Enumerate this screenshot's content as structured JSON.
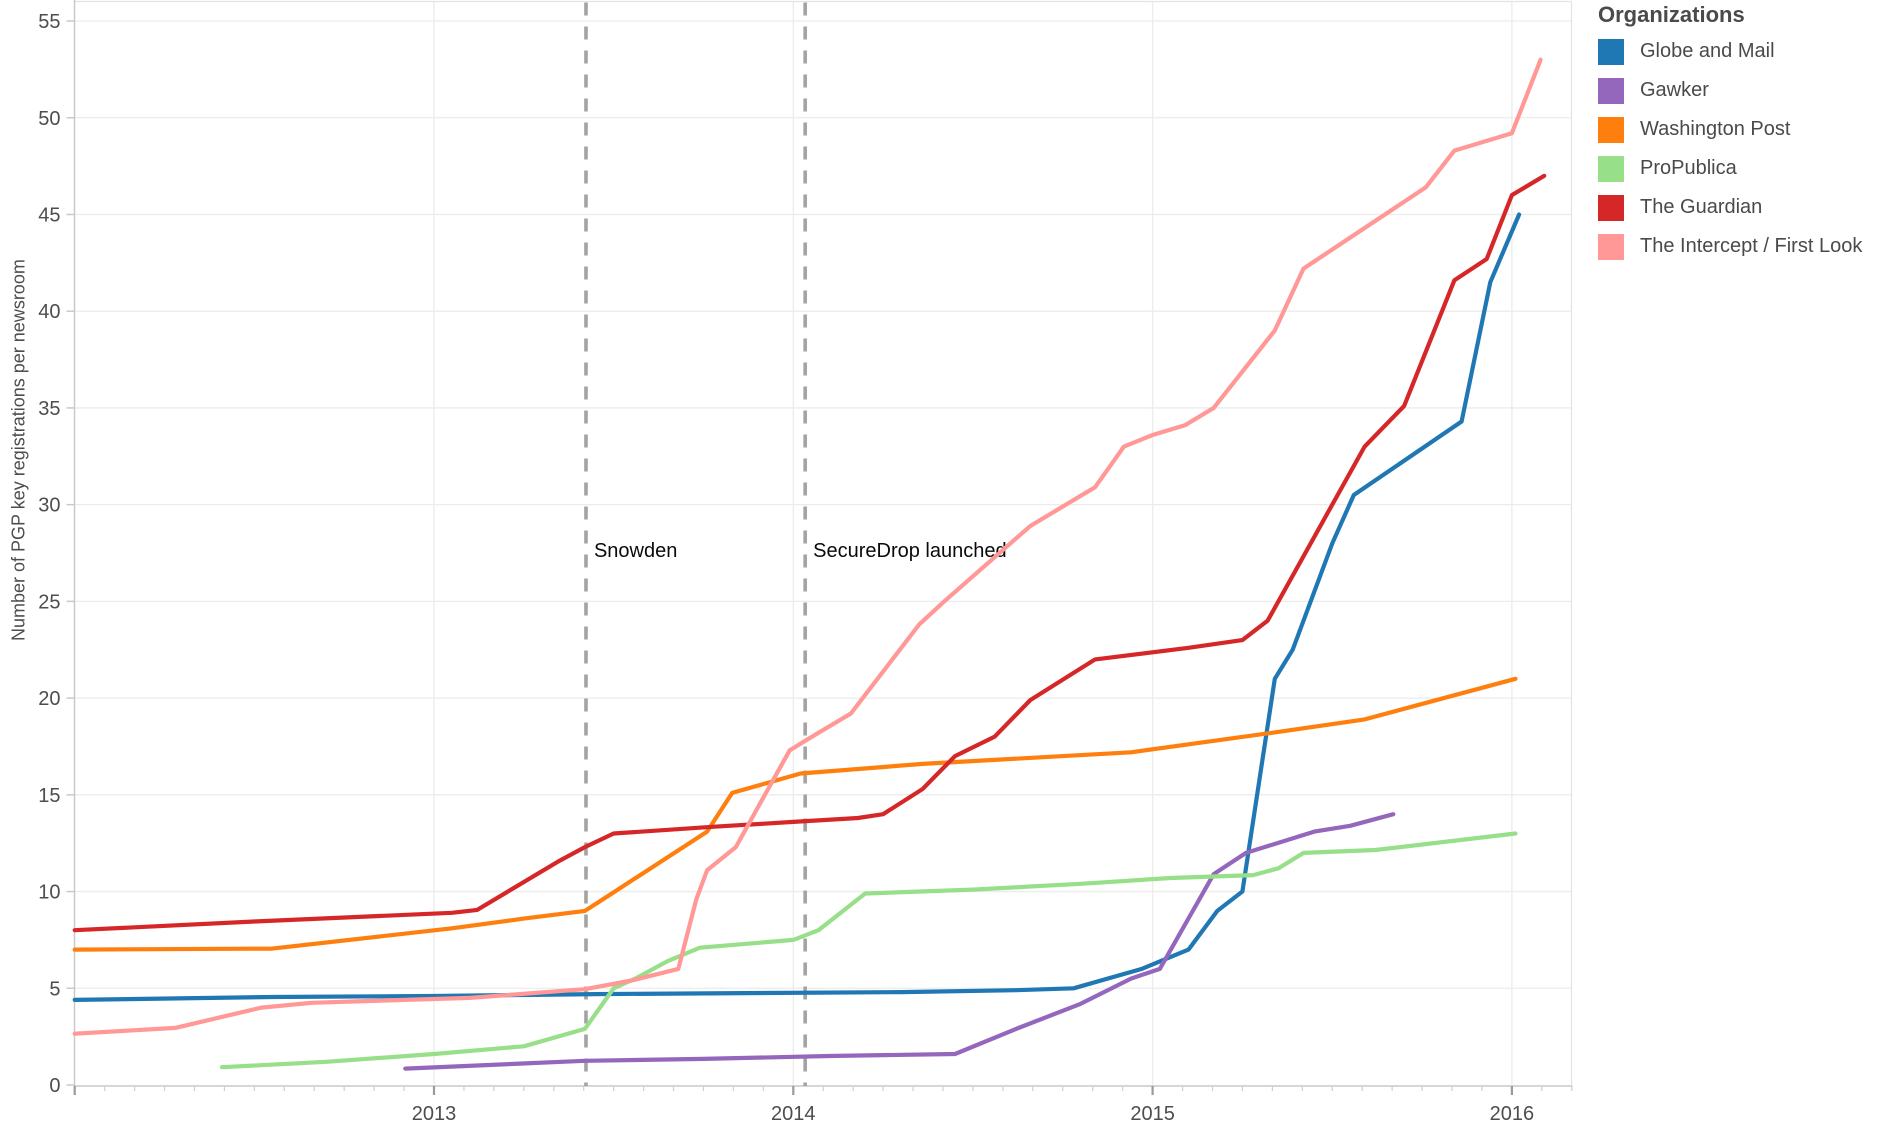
{
  "y_axis_title": "Number of PGP key registrations per newsroom",
  "legend": {
    "title": "Organizations"
  },
  "chart_data": {
    "type": "line",
    "title": "",
    "xlabel": "",
    "ylabel": "Number of PGP key registrations per newsroom",
    "x_range": [
      2012.0,
      2016.17
    ],
    "y_range": [
      0,
      56.2
    ],
    "grid": true,
    "legend_position": "top-right",
    "x_ticks": [
      {
        "value": 2013,
        "label": "2013"
      },
      {
        "value": 2014,
        "label": "2014"
      },
      {
        "value": 2015,
        "label": "2015"
      },
      {
        "value": 2016,
        "label": "2016"
      }
    ],
    "y_ticks": [
      {
        "value": 0,
        "label": "0"
      },
      {
        "value": 5,
        "label": "5"
      },
      {
        "value": 10,
        "label": "10"
      },
      {
        "value": 15,
        "label": "15"
      },
      {
        "value": 20,
        "label": "20"
      },
      {
        "value": 25,
        "label": "25"
      },
      {
        "value": 30,
        "label": "30"
      },
      {
        "value": 35,
        "label": "35"
      },
      {
        "value": 40,
        "label": "40"
      },
      {
        "value": 45,
        "label": "45"
      },
      {
        "value": 50,
        "label": "50"
      },
      {
        "value": 55,
        "label": "55"
      }
    ],
    "annotations": [
      {
        "label": "Snowden",
        "x": 2013.423
      },
      {
        "label": "SecureDrop launched",
        "x": 2014.033
      }
    ],
    "annotation_style": {
      "line_color": "#a3a3a3",
      "text_color": "#0a0a0a"
    },
    "series": [
      {
        "name": "Globe and Mail",
        "color": "#1f77b4",
        "points": [
          [
            2012.0,
            4.4
          ],
          [
            2012.55,
            4.55
          ],
          [
            2013.0,
            4.6
          ],
          [
            2013.45,
            4.7
          ],
          [
            2014.3,
            4.8
          ],
          [
            2014.62,
            4.9
          ],
          [
            2014.78,
            5.0
          ],
          [
            2014.97,
            6.0
          ],
          [
            2015.1,
            7.0
          ],
          [
            2015.18,
            9.0
          ],
          [
            2015.25,
            10.0
          ],
          [
            2015.34,
            21.0
          ],
          [
            2015.39,
            22.5
          ],
          [
            2015.5,
            28.0
          ],
          [
            2015.56,
            30.5
          ],
          [
            2015.86,
            34.3
          ],
          [
            2015.94,
            41.5
          ],
          [
            2016.02,
            45.0
          ]
        ]
      },
      {
        "name": "Gawker",
        "color": "#9467bd",
        "points": [
          [
            2012.92,
            0.85
          ],
          [
            2013.42,
            1.25
          ],
          [
            2013.75,
            1.35
          ],
          [
            2014.1,
            1.5
          ],
          [
            2014.45,
            1.6
          ],
          [
            2014.62,
            2.9
          ],
          [
            2014.8,
            4.2
          ],
          [
            2014.94,
            5.5
          ],
          [
            2015.02,
            6.0
          ],
          [
            2015.17,
            10.9
          ],
          [
            2015.26,
            12.0
          ],
          [
            2015.45,
            13.1
          ],
          [
            2015.55,
            13.4
          ],
          [
            2015.67,
            14.0
          ]
        ]
      },
      {
        "name": "Washington Post",
        "color": "#ff7f0e",
        "points": [
          [
            2012.0,
            7.0
          ],
          [
            2012.55,
            7.05
          ],
          [
            2013.05,
            8.1
          ],
          [
            2013.25,
            8.6
          ],
          [
            2013.42,
            9.0
          ],
          [
            2013.47,
            9.6
          ],
          [
            2013.76,
            13.1
          ],
          [
            2013.83,
            15.1
          ],
          [
            2014.02,
            16.1
          ],
          [
            2014.36,
            16.6
          ],
          [
            2014.94,
            17.2
          ],
          [
            2015.33,
            18.2
          ],
          [
            2015.59,
            18.9
          ],
          [
            2016.01,
            21.0
          ]
        ]
      },
      {
        "name": "ProPublica",
        "color": "#98df8a",
        "points": [
          [
            2012.41,
            0.92
          ],
          [
            2012.7,
            1.2
          ],
          [
            2013.0,
            1.6
          ],
          [
            2013.25,
            2.0
          ],
          [
            2013.42,
            2.9
          ],
          [
            2013.5,
            5.0
          ],
          [
            2013.56,
            5.5
          ],
          [
            2013.65,
            6.4
          ],
          [
            2013.74,
            7.1
          ],
          [
            2014.0,
            7.5
          ],
          [
            2014.07,
            8.0
          ],
          [
            2014.2,
            9.9
          ],
          [
            2014.5,
            10.1
          ],
          [
            2014.8,
            10.4
          ],
          [
            2015.05,
            10.7
          ],
          [
            2015.28,
            10.85
          ],
          [
            2015.35,
            11.2
          ],
          [
            2015.42,
            12.0
          ],
          [
            2015.62,
            12.15
          ],
          [
            2016.01,
            13.0
          ]
        ]
      },
      {
        "name": "The Guardian",
        "color": "#d62728",
        "points": [
          [
            2012.0,
            8.0
          ],
          [
            2012.5,
            8.45
          ],
          [
            2013.05,
            8.9
          ],
          [
            2013.12,
            9.05
          ],
          [
            2013.35,
            11.6
          ],
          [
            2013.42,
            12.3
          ],
          [
            2013.5,
            13.0
          ],
          [
            2013.78,
            13.35
          ],
          [
            2014.0,
            13.6
          ],
          [
            2014.18,
            13.8
          ],
          [
            2014.25,
            14.0
          ],
          [
            2014.36,
            15.3
          ],
          [
            2014.45,
            17.0
          ],
          [
            2014.56,
            18.0
          ],
          [
            2014.66,
            19.9
          ],
          [
            2014.84,
            22.0
          ],
          [
            2015.1,
            22.6
          ],
          [
            2015.25,
            23.0
          ],
          [
            2015.32,
            24.0
          ],
          [
            2015.59,
            33.0
          ],
          [
            2015.7,
            35.1
          ],
          [
            2015.84,
            41.6
          ],
          [
            2015.93,
            42.7
          ],
          [
            2016.0,
            46.0
          ],
          [
            2016.09,
            47.0
          ]
        ]
      },
      {
        "name": "The Intercept / First Look",
        "color": "#ff9896",
        "points": [
          [
            2012.0,
            2.65
          ],
          [
            2012.28,
            2.95
          ],
          [
            2012.52,
            4.0
          ],
          [
            2012.66,
            4.25
          ],
          [
            2013.1,
            4.5
          ],
          [
            2013.42,
            4.95
          ],
          [
            2013.55,
            5.4
          ],
          [
            2013.68,
            6.0
          ],
          [
            2013.73,
            9.6
          ],
          [
            2013.76,
            11.1
          ],
          [
            2013.84,
            12.3
          ],
          [
            2013.93,
            15.3
          ],
          [
            2013.99,
            17.3
          ],
          [
            2014.06,
            18.1
          ],
          [
            2014.16,
            19.2
          ],
          [
            2014.35,
            23.8
          ],
          [
            2014.42,
            25.0
          ],
          [
            2014.66,
            28.9
          ],
          [
            2014.84,
            30.9
          ],
          [
            2014.92,
            33.0
          ],
          [
            2015.0,
            33.6
          ],
          [
            2015.09,
            34.1
          ],
          [
            2015.17,
            35.0
          ],
          [
            2015.34,
            39.0
          ],
          [
            2015.42,
            42.2
          ],
          [
            2015.76,
            46.4
          ],
          [
            2015.84,
            48.3
          ],
          [
            2016.0,
            49.2
          ],
          [
            2016.08,
            53.0
          ]
        ]
      }
    ]
  }
}
